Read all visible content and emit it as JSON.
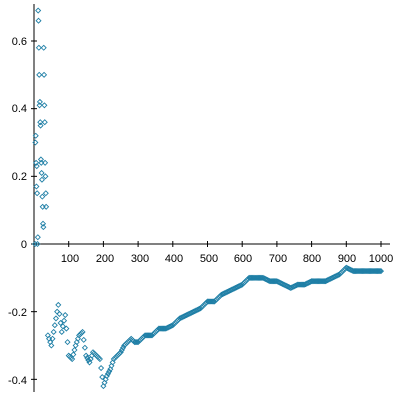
{
  "chart_data": {
    "type": "scatter",
    "title": "",
    "xlabel": "",
    "ylabel": "",
    "xlim": [
      0,
      1000
    ],
    "ylim": [
      -0.43,
      0.7
    ],
    "grid": false,
    "legend": "none",
    "marker": "diamond",
    "color": "#1f7fa6",
    "x_ticks": [
      "100",
      "200",
      "300",
      "400",
      "500",
      "600",
      "700",
      "800",
      "900",
      "1000"
    ],
    "y_ticks": [
      "0.6",
      "0.4",
      "0.2",
      "0",
      "-0.2",
      "-0.4"
    ],
    "series": [
      {
        "x": [
          3,
          4,
          5,
          6,
          7,
          8,
          9,
          10,
          11,
          12,
          13,
          14,
          15,
          16,
          17,
          18,
          19,
          20,
          21,
          22,
          23,
          24,
          25,
          26,
          27,
          28,
          29,
          30,
          31,
          32,
          33,
          34,
          35
        ],
        "y": [
          0,
          0.3,
          0.32,
          0.24,
          0.17,
          0.23,
          0.15,
          0,
          0.02,
          0.69,
          0.66,
          0.58,
          0.5,
          0.41,
          0.42,
          0.36,
          0.35,
          0.25,
          0.24,
          0.21,
          0.19,
          0.14,
          0.11,
          0.06,
          0.05,
          0.58,
          0.5,
          0.41,
          0.36,
          0.24,
          0.2,
          0.15,
          0.11
        ]
      },
      {
        "x": [
          40,
          50,
          60,
          70,
          80,
          90,
          100,
          110,
          120,
          130,
          140,
          150,
          160,
          170,
          180,
          190,
          200,
          210,
          220,
          230,
          240,
          250,
          260,
          270,
          280,
          290,
          300,
          320,
          340,
          360,
          380,
          400,
          420,
          440,
          460,
          480,
          500,
          520,
          540,
          560,
          580,
          600,
          620,
          640,
          660,
          680,
          700,
          720,
          740,
          760,
          780,
          800,
          820,
          840,
          860,
          880,
          900,
          920,
          940,
          960,
          980,
          1000
        ],
        "y": [
          -0.27,
          -0.3,
          -0.24,
          -0.18,
          -0.26,
          -0.21,
          -0.33,
          -0.34,
          -0.3,
          -0.27,
          -0.26,
          -0.33,
          -0.35,
          -0.32,
          -0.33,
          -0.34,
          -0.42,
          -0.39,
          -0.37,
          -0.34,
          -0.33,
          -0.32,
          -0.3,
          -0.29,
          -0.28,
          -0.29,
          -0.29,
          -0.27,
          -0.27,
          -0.25,
          -0.25,
          -0.24,
          -0.22,
          -0.21,
          -0.2,
          -0.19,
          -0.17,
          -0.17,
          -0.15,
          -0.14,
          -0.13,
          -0.12,
          -0.1,
          -0.1,
          -0.1,
          -0.11,
          -0.11,
          -0.12,
          -0.13,
          -0.12,
          -0.12,
          -0.11,
          -0.11,
          -0.11,
          -0.1,
          -0.09,
          -0.07,
          -0.08,
          -0.08,
          -0.08,
          -0.08,
          -0.08
        ]
      }
    ]
  }
}
